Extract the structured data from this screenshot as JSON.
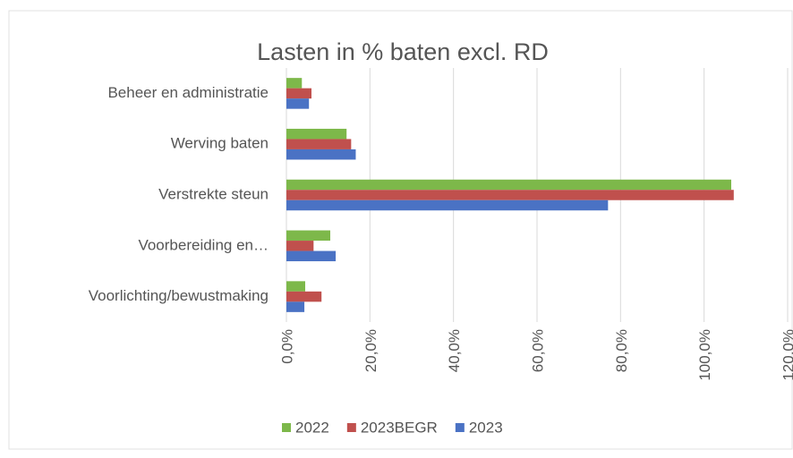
{
  "chart_data": {
    "type": "hbar",
    "title": "Lasten in % baten excl. RD",
    "categories": [
      "Beheer en administratie",
      "Werving baten",
      "Verstrekte steun",
      "Voorbereiding en…",
      "Voorlichting/bewustmaking"
    ],
    "series": [
      {
        "name": "2022",
        "color": "#7db84a",
        "values": [
          3.7,
          14.4,
          106.5,
          10.5,
          4.5
        ]
      },
      {
        "name": "2023BEGR",
        "color": "#c0504d",
        "values": [
          6.0,
          15.5,
          107.1,
          6.5,
          8.4
        ]
      },
      {
        "name": "2023",
        "color": "#4a72c4",
        "values": [
          5.4,
          16.6,
          77.0,
          11.8,
          4.3
        ]
      }
    ],
    "xlim": [
      0,
      120
    ],
    "xticks": [
      {
        "value": 0,
        "label": "0,0%"
      },
      {
        "value": 20,
        "label": "20,0%"
      },
      {
        "value": 40,
        "label": "40,0%"
      },
      {
        "value": 60,
        "label": "60,0%"
      },
      {
        "value": 80,
        "label": "80,0%"
      },
      {
        "value": 100,
        "label": "100,0%"
      },
      {
        "value": 120,
        "label": "120,0%"
      }
    ],
    "grid": true,
    "legend": "bottom"
  }
}
